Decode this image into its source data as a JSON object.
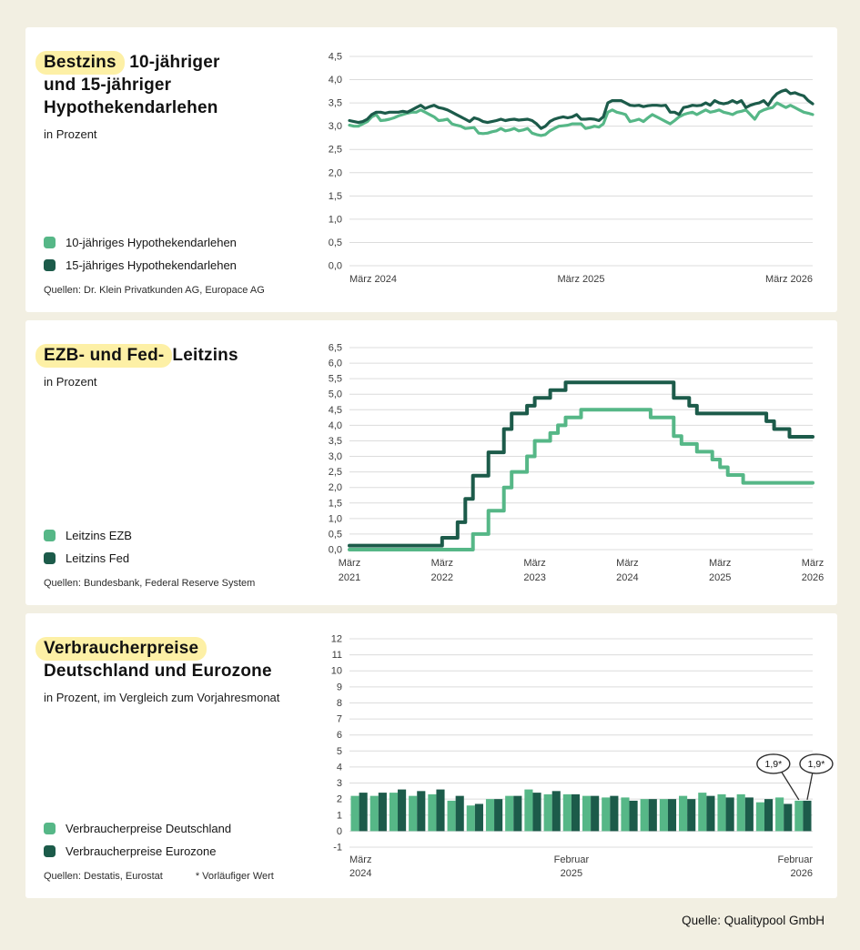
{
  "footer": {
    "source": "Quelle: Qualitypool GmbH"
  },
  "colors": {
    "light_green": "#56b787",
    "dark_green": "#1c5b4a",
    "highlight_yellow": "#fdf0a6",
    "page_background": "#f2efe2",
    "gridline": "#dcdcdc"
  },
  "panels": [
    {
      "title": {
        "highlight": "Bestzins",
        "rest": " 10-jähriger",
        "line2": "und 15-jähriger",
        "line3": "Hypothekendarlehen"
      },
      "subtitle": "in Prozent",
      "legend": [
        {
          "label": "10-jähriges Hypothekendarlehen",
          "color": "#56b787"
        },
        {
          "label": "15-jähriges Hypothekendarlehen",
          "color": "#1c5b4a"
        }
      ],
      "source": "Quellen: Dr. Klein Privatkunden AG, Europace AG"
    },
    {
      "title": {
        "highlight": "EZB- und Fed-",
        "rest": "Leitzins"
      },
      "subtitle": "in Prozent",
      "legend": [
        {
          "label": "Leitzins EZB",
          "color": "#56b787"
        },
        {
          "label": "Leitzins Fed",
          "color": "#1c5b4a"
        }
      ],
      "source": "Quellen: Bundesbank, Federal Reserve System"
    },
    {
      "title": {
        "highlight": "Verbraucherpreise",
        "line2": "Deutschland und Eurozone"
      },
      "subtitle": "in Prozent, im Vergleich zum Vorjahresmonat",
      "legend": [
        {
          "label": "Verbraucherpreise Deutschland",
          "color": "#56b787"
        },
        {
          "label": "Verbraucherpreise Eurozone",
          "color": "#1c5b4a"
        }
      ],
      "source": "Quellen: Destatis, Eurostat",
      "note": "* Vorläufiger Wert"
    }
  ],
  "chart_data": [
    {
      "type": "line",
      "title": "Bestzins 10-jähriger und 15-jähriger Hypothekendarlehen",
      "ylabel": "Prozent",
      "ylim": [
        0,
        4.5
      ],
      "grid": "horizontal",
      "y_ticks": {
        "values": [
          0,
          0.5,
          1,
          1.5,
          2,
          2.5,
          3,
          3.5,
          4,
          4.5
        ],
        "labels": [
          "0,0",
          "0,5",
          "1,0",
          "1,5",
          "2,0",
          "2,5",
          "3,0",
          "3,5",
          "4,0",
          "4,5"
        ]
      },
      "x_ticks": [
        {
          "frac": 0,
          "align": "start",
          "lines": [
            "März 2024"
          ]
        },
        {
          "frac": 0.5,
          "align": "middle",
          "lines": [
            "März 2025"
          ]
        },
        {
          "frac": 1,
          "align": "end",
          "lines": [
            "März 2026"
          ]
        }
      ],
      "x_range": [
        "März 2024",
        "März 2026"
      ],
      "resolution": "weekly",
      "series": [
        {
          "name": "10-jähriges Hypothekendarlehen",
          "color": "#56b787",
          "values": [
            3.02,
            3.0,
            3.0,
            3.05,
            3.1,
            3.2,
            3.25,
            3.12,
            3.13,
            3.15,
            3.18,
            3.22,
            3.25,
            3.28,
            3.3,
            3.3,
            3.35,
            3.3,
            3.25,
            3.2,
            3.12,
            3.13,
            3.15,
            3.05,
            3.02,
            3.0,
            2.95,
            2.96,
            2.97,
            2.85,
            2.84,
            2.85,
            2.88,
            2.9,
            2.95,
            2.9,
            2.92,
            2.95,
            2.9,
            2.92,
            2.95,
            2.85,
            2.82,
            2.8,
            2.82,
            2.9,
            2.95,
            3.0,
            3.01,
            3.02,
            3.05,
            3.05,
            3.05,
            2.95,
            2.97,
            3.0,
            2.98,
            3.05,
            3.3,
            3.35,
            3.3,
            3.28,
            3.25,
            3.1,
            3.12,
            3.15,
            3.1,
            3.18,
            3.25,
            3.2,
            3.15,
            3.1,
            3.05,
            3.12,
            3.2,
            3.25,
            3.28,
            3.3,
            3.25,
            3.3,
            3.35,
            3.3,
            3.32,
            3.35,
            3.3,
            3.28,
            3.25,
            3.3,
            3.32,
            3.35,
            3.25,
            3.15,
            3.3,
            3.35,
            3.38,
            3.4,
            3.5,
            3.45,
            3.4,
            3.45,
            3.4,
            3.35,
            3.3,
            3.28,
            3.25
          ]
        },
        {
          "name": "15-jähriges Hypothekendarlehen",
          "color": "#1c5b4a",
          "values": [
            3.12,
            3.1,
            3.08,
            3.1,
            3.15,
            3.25,
            3.3,
            3.3,
            3.28,
            3.3,
            3.3,
            3.3,
            3.32,
            3.3,
            3.35,
            3.4,
            3.45,
            3.38,
            3.42,
            3.45,
            3.4,
            3.38,
            3.35,
            3.3,
            3.25,
            3.2,
            3.15,
            3.1,
            3.18,
            3.15,
            3.1,
            3.08,
            3.1,
            3.12,
            3.15,
            3.12,
            3.14,
            3.15,
            3.13,
            3.14,
            3.15,
            3.12,
            3.05,
            2.95,
            3.0,
            3.1,
            3.15,
            3.18,
            3.2,
            3.18,
            3.2,
            3.25,
            3.15,
            3.15,
            3.16,
            3.15,
            3.12,
            3.2,
            3.5,
            3.55,
            3.55,
            3.55,
            3.5,
            3.45,
            3.44,
            3.45,
            3.42,
            3.44,
            3.45,
            3.45,
            3.44,
            3.45,
            3.3,
            3.3,
            3.25,
            3.4,
            3.42,
            3.45,
            3.44,
            3.45,
            3.5,
            3.45,
            3.55,
            3.5,
            3.48,
            3.5,
            3.55,
            3.5,
            3.55,
            3.4,
            3.45,
            3.48,
            3.5,
            3.55,
            3.45,
            3.6,
            3.7,
            3.75,
            3.78,
            3.7,
            3.72,
            3.68,
            3.65,
            3.55,
            3.48
          ]
        }
      ]
    },
    {
      "type": "line",
      "line_style": "step",
      "title": "EZB- und Fed-Leitzins",
      "ylabel": "Prozent",
      "ylim": [
        0,
        6.5
      ],
      "grid": "horizontal",
      "y_ticks": {
        "values": [
          0,
          0.5,
          1,
          1.5,
          2,
          2.5,
          3,
          3.5,
          4,
          4.5,
          5,
          5.5,
          6,
          6.5
        ],
        "labels": [
          "0,0",
          "0,5",
          "1,0",
          "1,5",
          "2,0",
          "2,5",
          "3,0",
          "3,5",
          "4,0",
          "4,5",
          "5,0",
          "5,5",
          "6,0",
          "6,5"
        ]
      },
      "x_ticks": [
        {
          "frac": 0,
          "align": "middle",
          "lines": [
            "März",
            "2021"
          ]
        },
        {
          "frac": 0.2,
          "align": "middle",
          "lines": [
            "März",
            "2022"
          ]
        },
        {
          "frac": 0.4,
          "align": "middle",
          "lines": [
            "März",
            "2023"
          ]
        },
        {
          "frac": 0.6,
          "align": "middle",
          "lines": [
            "März",
            "2024"
          ]
        },
        {
          "frac": 0.8,
          "align": "middle",
          "lines": [
            "März",
            "2025"
          ]
        },
        {
          "frac": 1,
          "align": "middle",
          "lines": [
            "März",
            "2026"
          ]
        }
      ],
      "x_range": [
        "März 2021",
        "März 2026"
      ],
      "resolution": "monthly",
      "series": [
        {
          "name": "Leitzins EZB",
          "color": "#56b787",
          "values": [
            0,
            0,
            0,
            0,
            0,
            0,
            0,
            0,
            0,
            0,
            0,
            0,
            0,
            0,
            0,
            0,
            0.5,
            0.5,
            1.25,
            1.25,
            2.0,
            2.5,
            2.5,
            3.0,
            3.5,
            3.5,
            3.75,
            4.0,
            4.25,
            4.25,
            4.5,
            4.5,
            4.5,
            4.5,
            4.5,
            4.5,
            4.5,
            4.5,
            4.5,
            4.25,
            4.25,
            4.25,
            3.65,
            3.4,
            3.4,
            3.15,
            3.15,
            2.9,
            2.65,
            2.4,
            2.4,
            2.15,
            2.15,
            2.15,
            2.15,
            2.15,
            2.15,
            2.15,
            2.15,
            2.15,
            2.15
          ]
        },
        {
          "name": "Leitzins Fed",
          "color": "#1c5b4a",
          "values": [
            0.13,
            0.13,
            0.13,
            0.13,
            0.13,
            0.13,
            0.13,
            0.13,
            0.13,
            0.13,
            0.13,
            0.13,
            0.38,
            0.38,
            0.88,
            1.63,
            2.38,
            2.38,
            3.13,
            3.13,
            3.88,
            4.38,
            4.38,
            4.63,
            4.88,
            4.88,
            5.13,
            5.13,
            5.38,
            5.38,
            5.38,
            5.38,
            5.38,
            5.38,
            5.38,
            5.38,
            5.38,
            5.38,
            5.38,
            5.38,
            5.38,
            5.38,
            4.88,
            4.88,
            4.63,
            4.38,
            4.38,
            4.38,
            4.38,
            4.38,
            4.38,
            4.38,
            4.38,
            4.38,
            4.13,
            3.88,
            3.88,
            3.63,
            3.63,
            3.63,
            3.63
          ]
        }
      ]
    },
    {
      "type": "bar",
      "title": "Verbraucherpreise Deutschland und Eurozone",
      "ylabel": "Prozent, im Vergleich zum Vorjahresmonat",
      "ylim": [
        -1,
        12
      ],
      "grid": "horizontal",
      "y_ticks": {
        "values": [
          -1,
          0,
          1,
          2,
          3,
          4,
          5,
          6,
          7,
          8,
          9,
          10,
          11,
          12
        ],
        "labels": [
          "-1",
          "0",
          "1",
          "2",
          "3",
          "4",
          "5",
          "6",
          "7",
          "8",
          "9",
          "10",
          "11",
          "12"
        ]
      },
      "x_ticks": [
        {
          "group": 0,
          "align": "start",
          "lines": [
            "März",
            "2024"
          ]
        },
        {
          "group": 11,
          "align": "middle",
          "lines": [
            "Februar",
            "2025"
          ]
        },
        {
          "group": 23,
          "align": "end",
          "lines": [
            "Februar",
            "2026"
          ]
        }
      ],
      "x_range": [
        "März 2024",
        "Februar 2026"
      ],
      "resolution": "monthly",
      "series": [
        {
          "name": "Verbraucherpreise Deutschland",
          "color": "#56b787",
          "values": [
            2.2,
            2.2,
            2.4,
            2.2,
            2.3,
            1.9,
            1.6,
            2.0,
            2.2,
            2.6,
            2.3,
            2.3,
            2.2,
            2.1,
            2.1,
            2.0,
            2.0,
            2.2,
            2.4,
            2.3,
            2.3,
            1.8,
            2.1,
            1.9
          ]
        },
        {
          "name": "Verbraucherpreise Eurozone",
          "color": "#1c5b4a",
          "values": [
            2.4,
            2.4,
            2.6,
            2.5,
            2.6,
            2.2,
            1.7,
            2.0,
            2.2,
            2.4,
            2.5,
            2.3,
            2.2,
            2.2,
            1.9,
            2.0,
            2.0,
            2.0,
            2.2,
            2.1,
            2.1,
            2.0,
            1.7,
            1.9
          ]
        }
      ],
      "annotations": [
        {
          "text": "1,9*",
          "series": 0,
          "index": 23
        },
        {
          "text": "1,9*",
          "series": 1,
          "index": 23
        }
      ]
    }
  ]
}
